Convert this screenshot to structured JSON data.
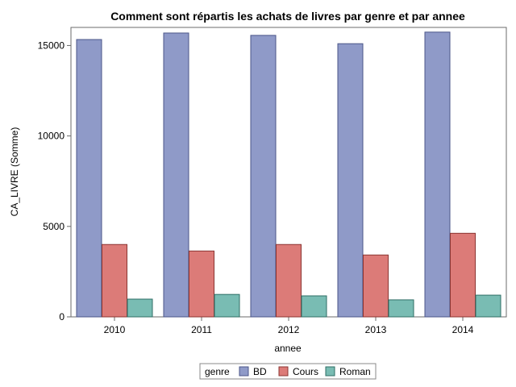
{
  "chart_data": {
    "type": "bar",
    "title": "Comment sont répartis les achats de livres par genre et par annee",
    "xlabel": "annee",
    "ylabel": "CA_LIVRE (Somme)",
    "categories": [
      "2010",
      "2011",
      "2012",
      "2013",
      "2014"
    ],
    "ylim": [
      0,
      16000
    ],
    "yticks": [
      0,
      5000,
      10000,
      15000
    ],
    "grid": false,
    "legend": {
      "title": "genre",
      "placement": "bottom-center"
    },
    "series": [
      {
        "name": "BD",
        "values": [
          15330,
          15690,
          15560,
          15100,
          15740
        ],
        "color": "#8f9ac8",
        "edge": "#4b5689"
      },
      {
        "name": "Cours",
        "values": [
          4000,
          3640,
          4000,
          3420,
          4620
        ],
        "color": "#dc7b78",
        "edge": "#8b3532"
      },
      {
        "name": "Roman",
        "values": [
          980,
          1240,
          1160,
          940,
          1200
        ],
        "color": "#79bcb3",
        "edge": "#2f6e66"
      }
    ]
  }
}
